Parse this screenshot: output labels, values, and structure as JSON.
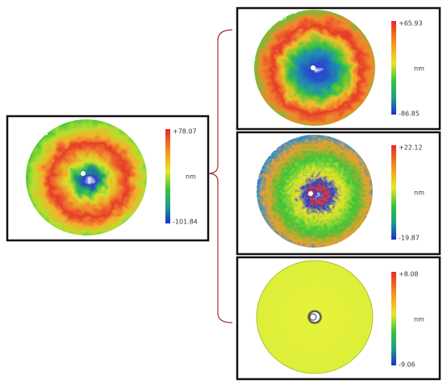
{
  "panels": [
    {
      "max": "+78.07",
      "unit": "nm",
      "min": "-101.84"
    },
    {
      "max": "+65.93",
      "unit": "nm",
      "min": "-86.85"
    },
    {
      "max": "+22.12",
      "unit": "nm",
      "min": "-19.87"
    },
    {
      "max": "+8.08",
      "unit": "nm",
      "min": "-9.06"
    }
  ]
}
